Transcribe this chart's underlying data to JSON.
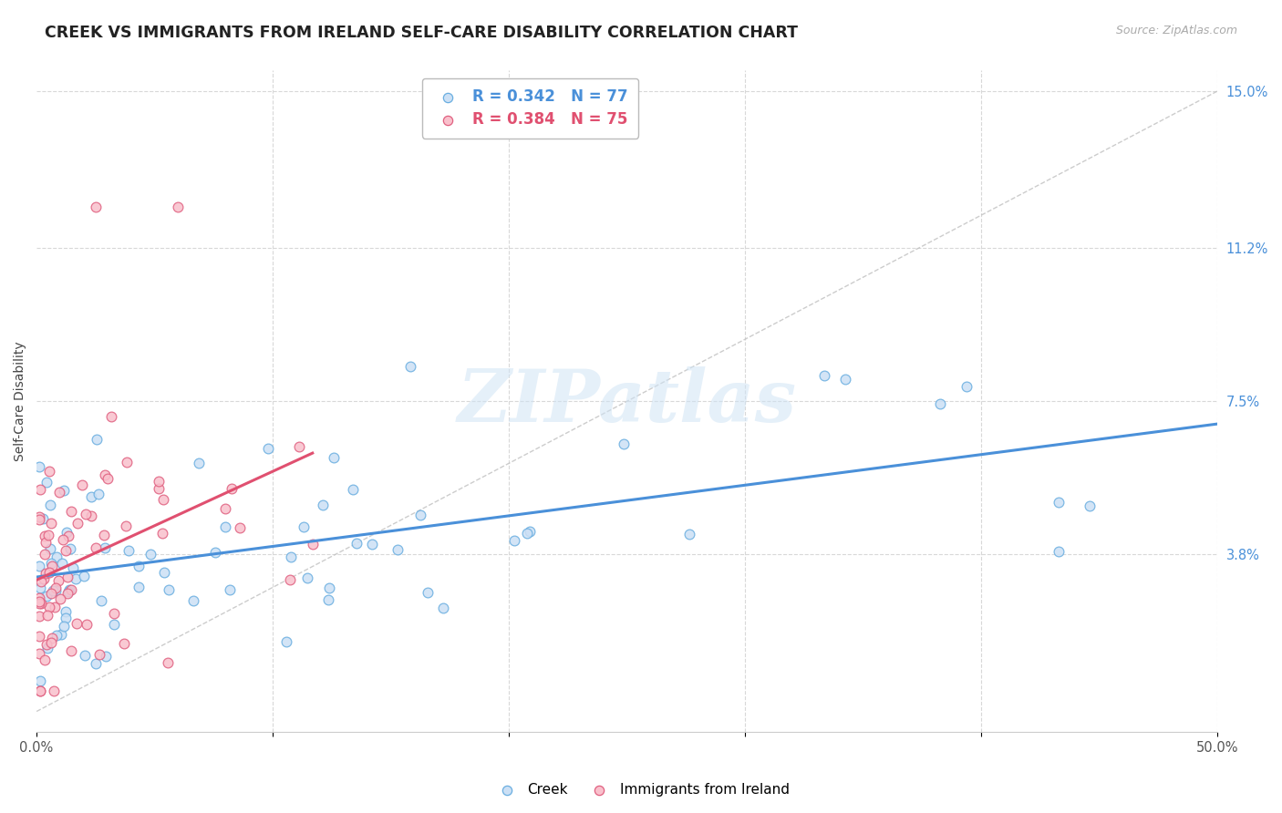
{
  "title": "CREEK VS IMMIGRANTS FROM IRELAND SELF-CARE DISABILITY CORRELATION CHART",
  "source": "Source: ZipAtlas.com",
  "ylabel": "Self-Care Disability",
  "xlim": [
    0.0,
    0.5
  ],
  "ylim": [
    -0.005,
    0.155
  ],
  "yticks_right": [
    0.038,
    0.075,
    0.112,
    0.15
  ],
  "ytick_right_labels": [
    "3.8%",
    "7.5%",
    "11.2%",
    "15.0%"
  ],
  "legend_creek": "Creek",
  "legend_ireland": "Immigrants from Ireland",
  "R_creek": 0.342,
  "N_creek": 77,
  "R_ireland": 0.384,
  "N_ireland": 75,
  "creek_fill_color": "#cce0f5",
  "creek_edge_color": "#6aaee0",
  "ireland_fill_color": "#f9c0cc",
  "ireland_edge_color": "#e06080",
  "creek_trend_color": "#4a90d9",
  "ireland_trend_color": "#e05070",
  "background_color": "#ffffff",
  "grid_color": "#d8d8d8",
  "watermark": "ZIPatlas",
  "title_fontsize": 12.5,
  "axis_fontsize": 10,
  "tick_fontsize": 10.5,
  "legend_fontsize": 12
}
